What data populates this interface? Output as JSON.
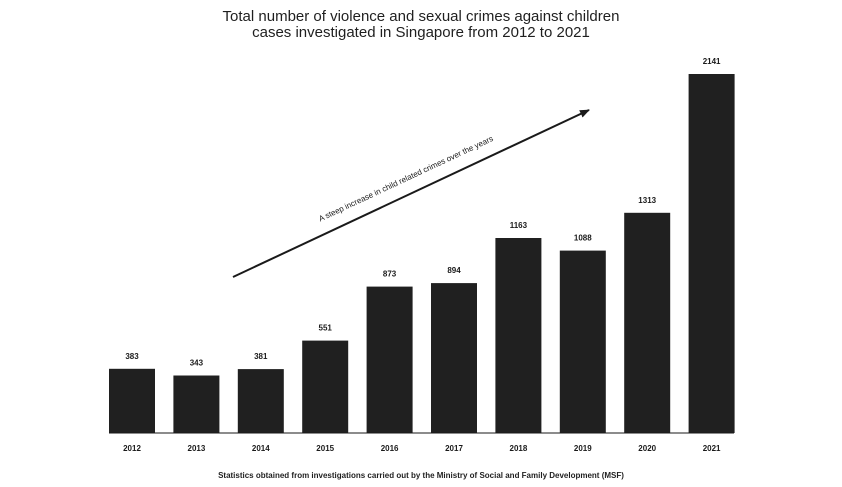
{
  "chart_data": {
    "type": "bar",
    "title": "Total number of violence and sexual crimes against children cases investigated in Singapore from 2012 to 2021",
    "title_lines": [
      "Total number of violence and sexual crimes against children",
      "cases investigated in Singapore from 2012 to 2021"
    ],
    "categories": [
      "2012",
      "2013",
      "2014",
      "2015",
      "2016",
      "2017",
      "2018",
      "2019",
      "2020",
      "2021"
    ],
    "values": [
      383,
      343,
      381,
      551,
      873,
      894,
      1163,
      1088,
      1313,
      2141
    ],
    "xlabel": "",
    "ylabel": "",
    "ylim": [
      0,
      2141
    ],
    "data_labels": true,
    "grid": false,
    "legend": "none",
    "bar_color": "#202020",
    "annotation": {
      "text": "A steep increase in child related crimes over the years"
    },
    "footnote": "Statistics obtained from investigations carried out by the Ministry of Social and Family Development (MSF)"
  }
}
